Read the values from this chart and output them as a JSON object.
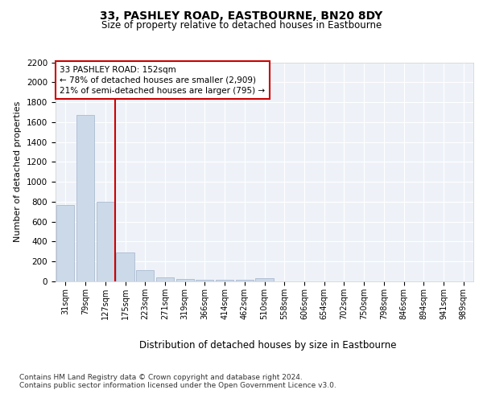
{
  "title1": "33, PASHLEY ROAD, EASTBOURNE, BN20 8DY",
  "title2": "Size of property relative to detached houses in Eastbourne",
  "xlabel": "Distribution of detached houses by size in Eastbourne",
  "ylabel": "Number of detached properties",
  "categories": [
    "31sqm",
    "79sqm",
    "127sqm",
    "175sqm",
    "223sqm",
    "271sqm",
    "319sqm",
    "366sqm",
    "414sqm",
    "462sqm",
    "510sqm",
    "558sqm",
    "606sqm",
    "654sqm",
    "702sqm",
    "750sqm",
    "798sqm",
    "846sqm",
    "894sqm",
    "941sqm",
    "989sqm"
  ],
  "values": [
    770,
    1670,
    800,
    290,
    115,
    38,
    22,
    18,
    14,
    13,
    35,
    0,
    0,
    0,
    0,
    0,
    0,
    0,
    0,
    0,
    0
  ],
  "bar_color": "#ccd9e8",
  "bar_edge_color": "#aabbd0",
  "vline_pos": 2.5,
  "vline_color": "#cc0000",
  "annotation_text": "33 PASHLEY ROAD: 152sqm\n← 78% of detached houses are smaller (2,909)\n21% of semi-detached houses are larger (795) →",
  "annotation_box_edgecolor": "#cc0000",
  "ylim": [
    0,
    2200
  ],
  "yticks": [
    0,
    200,
    400,
    600,
    800,
    1000,
    1200,
    1400,
    1600,
    1800,
    2000,
    2200
  ],
  "bg_color": "#eef2f8",
  "grid_color": "#ffffff",
  "footnote": "Contains HM Land Registry data © Crown copyright and database right 2024.\nContains public sector information licensed under the Open Government Licence v3.0."
}
